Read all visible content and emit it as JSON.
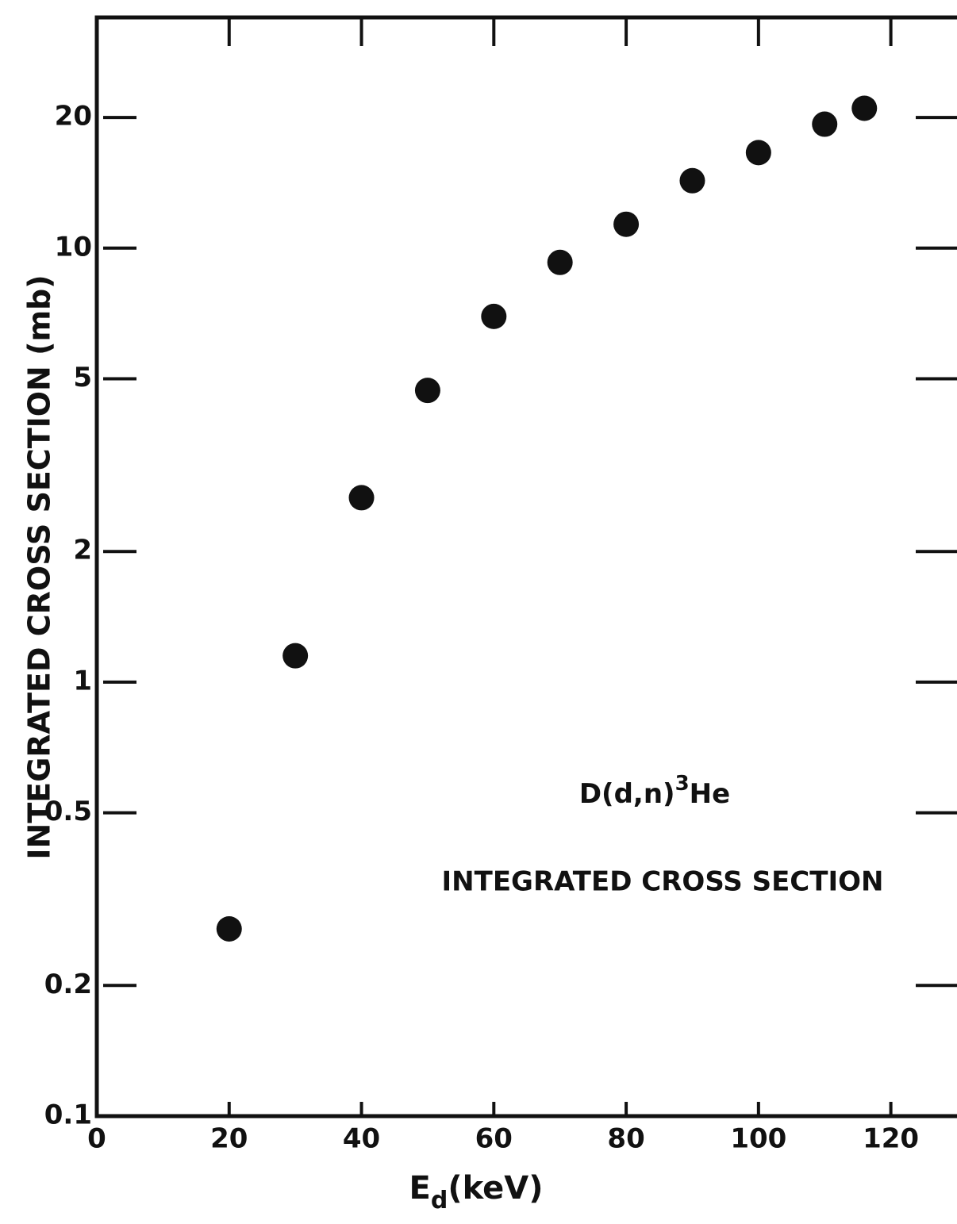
{
  "chart_data": {
    "type": "scatter",
    "ylabel": "INTEGRATED CROSS SECTION (mb)",
    "xlabel_symbol": "E",
    "xlabel_subscript": "d",
    "xlabel_unit": "(keV)",
    "annotation_reaction": "D(d,n)",
    "annotation_superscript": "3",
    "annotation_nucleus": "He",
    "annotation_title": "INTEGRATED CROSS SECTION",
    "x": [
      20,
      30,
      40,
      50,
      60,
      70,
      80,
      90,
      100,
      110,
      116
    ],
    "values": [
      0.27,
      1.15,
      2.66,
      4.7,
      6.96,
      9.27,
      11.35,
      14.3,
      16.6,
      19.3,
      21.0
    ],
    "color": "#111111",
    "xlim": [
      0,
      130
    ],
    "ylim": [
      0.1,
      34
    ],
    "ylog": true,
    "xticks": [
      0,
      20,
      40,
      60,
      80,
      100,
      120
    ],
    "yticks": [
      0.1,
      0.2,
      0.5,
      1,
      2,
      5,
      10,
      20
    ]
  }
}
